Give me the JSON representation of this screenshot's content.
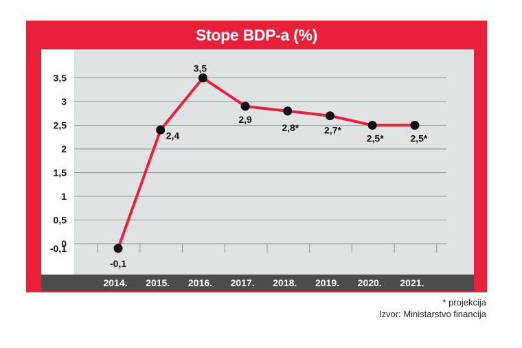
{
  "chart_data": {
    "type": "line",
    "title": "Stope BDP-a (%)",
    "categories": [
      "2014.",
      "2015.",
      "2016.",
      "2017.",
      "2018.",
      "2019.",
      "2020.",
      "2021."
    ],
    "values": [
      -0.1,
      2.4,
      3.5,
      2.9,
      2.8,
      2.7,
      2.5,
      2.5
    ],
    "data_labels": [
      "-0,1",
      "2,4",
      "3,5",
      "2,9",
      "2,8*",
      "2,7*",
      "2,5*",
      "2,5*"
    ],
    "y_ticks": [
      -0.1,
      0,
      0.5,
      1,
      1.5,
      2,
      2.5,
      3,
      3.5
    ],
    "y_tick_labels": [
      "-0,1",
      "0",
      "0,5",
      "1",
      "1,5",
      "2",
      "2,5",
      "3",
      "3,5"
    ],
    "ylim": [
      -0.45,
      4.0
    ],
    "grid": true,
    "xlabel": "",
    "ylabel": ""
  },
  "colors": {
    "frame": "#e8203a",
    "plot_bg": "#dfe3e3",
    "axis_bg": "#ffffff",
    "x_bar": "#4a4d4c",
    "line": "#e8203a",
    "marker": "#111111",
    "grid": "#8a8f8f"
  },
  "footnote": {
    "projection": "* projekcija",
    "source": "Izvor: Ministarstvo financija"
  }
}
